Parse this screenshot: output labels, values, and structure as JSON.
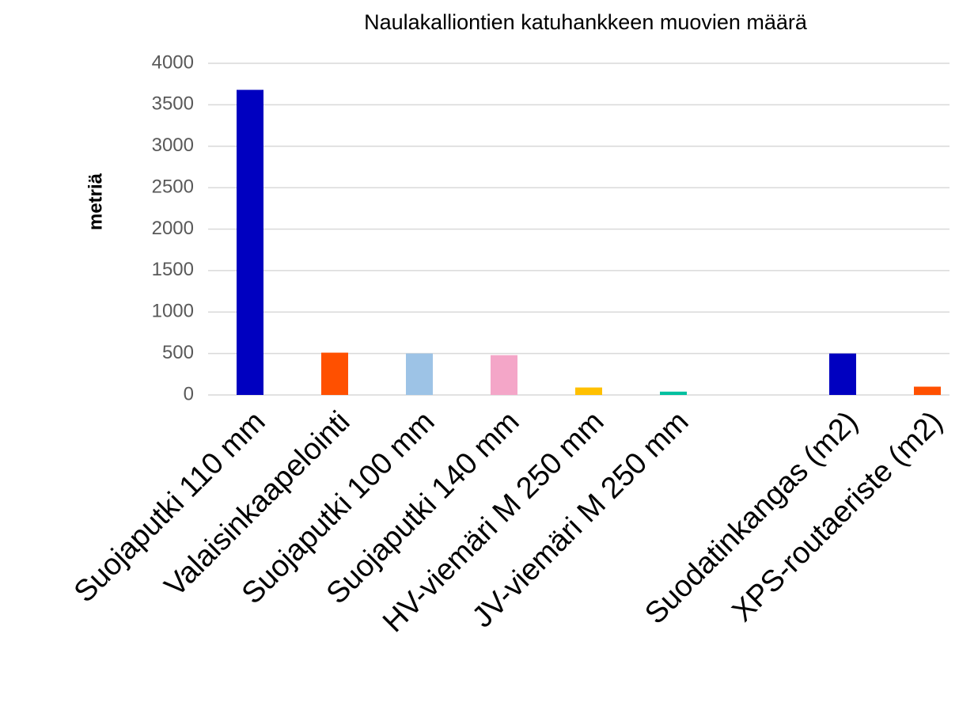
{
  "chart_data": {
    "type": "bar",
    "title": "Naulakalliontien katuhankkeen muovien määrä",
    "y_label": "metriä",
    "categories": [
      "Suojaputki 110 mm",
      "Valaisinkaapelointi",
      "Suojaputki 100 mm",
      "Suojaputki 140 mm",
      "HV-viemäri M 250 mm",
      "JV-viemäri M 250 mm",
      null,
      "Suodatinkangas (m2)",
      "XPS-routaeriste (m2)"
    ],
    "values": [
      3680,
      510,
      500,
      480,
      90,
      40,
      null,
      500,
      100
    ],
    "colors": [
      "#0000c0",
      "#ff5000",
      "#9dc3e6",
      "#f4a6c8",
      "#ffc000",
      "#00c0a0",
      null,
      "#0000c0",
      "#ff5000"
    ],
    "ylim": [
      0,
      4000
    ],
    "yticks": [
      0,
      500,
      1000,
      1500,
      2000,
      2500,
      3000,
      3500,
      4000
    ],
    "grid": true
  }
}
